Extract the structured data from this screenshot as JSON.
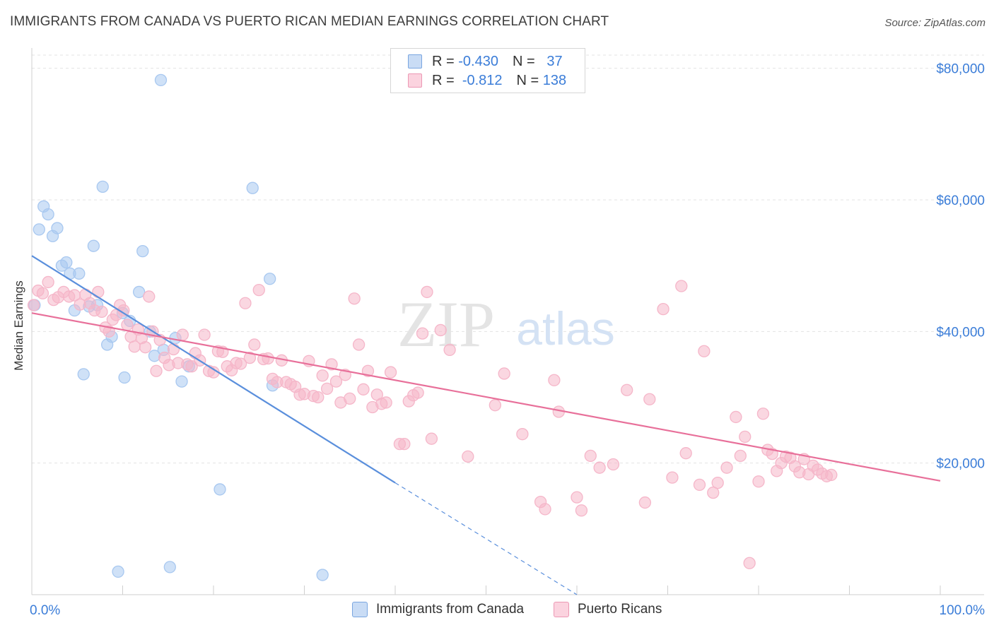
{
  "title": "IMMIGRANTS FROM CANADA VS PUERTO RICAN MEDIAN EARNINGS CORRELATION CHART",
  "source": "Source: ZipAtlas.com",
  "watermark": {
    "zip": "ZIP",
    "atlas": "atlas"
  },
  "legend": {
    "rows": [
      {
        "r_label": "R =",
        "r_value": "-0.430",
        "n_label": "N =",
        "n_value": "37",
        "color": "#a8c8f0"
      },
      {
        "r_label": "R =",
        "r_value": "-0.812",
        "n_label": "N =",
        "n_value": "138",
        "color": "#f5b6c9"
      }
    ]
  },
  "chart_data": {
    "type": "scatter",
    "xlabel": "",
    "ylabel": "Median Earnings",
    "xlim": [
      0,
      100
    ],
    "ylim": [
      0,
      82000
    ],
    "x_tick_labels": [
      "0.0%",
      "100.0%"
    ],
    "y_ticks": [
      20000,
      40000,
      60000,
      80000
    ],
    "y_tick_labels": [
      "$20,000",
      "$40,000",
      "$60,000",
      "$80,000"
    ],
    "grid": true,
    "series": [
      {
        "name": "Immigrants from Canada",
        "color": "#5a8fdc",
        "fill": "#a8c8f0",
        "trend": {
          "x0": 0,
          "y0": 51500,
          "x1": 40,
          "y1": 17000,
          "dash_to_x": 60,
          "dash_to_y": 0
        },
        "points": [
          [
            0.3,
            44000
          ],
          [
            0.8,
            55500
          ],
          [
            1.3,
            59000
          ],
          [
            1.8,
            57800
          ],
          [
            2.3,
            54500
          ],
          [
            2.8,
            55700
          ],
          [
            3.3,
            50000
          ],
          [
            3.8,
            50500
          ],
          [
            4.2,
            48800
          ],
          [
            4.7,
            43200
          ],
          [
            5.2,
            48800
          ],
          [
            5.7,
            33500
          ],
          [
            6.3,
            43800
          ],
          [
            6.8,
            53000
          ],
          [
            7.2,
            44000
          ],
          [
            7.8,
            62000
          ],
          [
            8.3,
            38000
          ],
          [
            8.8,
            39200
          ],
          [
            9.5,
            3500
          ],
          [
            10.0,
            42800
          ],
          [
            10.2,
            33000
          ],
          [
            10.8,
            41600
          ],
          [
            11.8,
            46000
          ],
          [
            12.2,
            52200
          ],
          [
            13.0,
            40000
          ],
          [
            13.5,
            36300
          ],
          [
            14.2,
            78200
          ],
          [
            14.5,
            37200
          ],
          [
            15.2,
            4200
          ],
          [
            15.8,
            39000
          ],
          [
            16.5,
            32400
          ],
          [
            17.3,
            34700
          ],
          [
            20.7,
            16000
          ],
          [
            24.3,
            61800
          ],
          [
            26.2,
            48000
          ],
          [
            26.5,
            31800
          ],
          [
            32.0,
            3000
          ]
        ]
      },
      {
        "name": "Puerto Ricans",
        "color": "#e8709a",
        "fill": "#f5b6c9",
        "trend": {
          "x0": 0,
          "y0": 42800,
          "x1": 100,
          "y1": 17300
        },
        "points": [
          [
            0.2,
            44000
          ],
          [
            0.7,
            46200
          ],
          [
            1.2,
            45800
          ],
          [
            1.8,
            47500
          ],
          [
            2.4,
            44800
          ],
          [
            2.9,
            45200
          ],
          [
            3.5,
            46000
          ],
          [
            4.1,
            45300
          ],
          [
            4.7,
            45500
          ],
          [
            5.3,
            44100
          ],
          [
            5.9,
            45600
          ],
          [
            6.4,
            44300
          ],
          [
            6.9,
            43200
          ],
          [
            7.3,
            46000
          ],
          [
            7.7,
            43000
          ],
          [
            8.1,
            40600
          ],
          [
            8.5,
            40000
          ],
          [
            8.9,
            41800
          ],
          [
            9.3,
            42500
          ],
          [
            9.7,
            44000
          ],
          [
            10.1,
            43200
          ],
          [
            10.5,
            41000
          ],
          [
            10.9,
            39200
          ],
          [
            11.3,
            37700
          ],
          [
            11.7,
            40300
          ],
          [
            12.1,
            39000
          ],
          [
            12.5,
            37600
          ],
          [
            12.9,
            45300
          ],
          [
            13.3,
            40000
          ],
          [
            13.7,
            34000
          ],
          [
            14.1,
            38700
          ],
          [
            14.6,
            36000
          ],
          [
            15.1,
            34900
          ],
          [
            15.6,
            37300
          ],
          [
            16.1,
            35200
          ],
          [
            16.6,
            39500
          ],
          [
            17.1,
            35000
          ],
          [
            17.6,
            34700
          ],
          [
            18.0,
            36700
          ],
          [
            18.5,
            35600
          ],
          [
            19.0,
            39500
          ],
          [
            19.5,
            34000
          ],
          [
            20.0,
            33800
          ],
          [
            20.5,
            37000
          ],
          [
            21.0,
            36900
          ],
          [
            21.5,
            34700
          ],
          [
            22.0,
            34100
          ],
          [
            22.5,
            35200
          ],
          [
            23.0,
            35100
          ],
          [
            23.5,
            44300
          ],
          [
            24.0,
            36000
          ],
          [
            24.5,
            38000
          ],
          [
            25.0,
            46300
          ],
          [
            25.5,
            35800
          ],
          [
            26.0,
            35900
          ],
          [
            26.5,
            32800
          ],
          [
            27.0,
            32300
          ],
          [
            27.5,
            35600
          ],
          [
            28.0,
            32300
          ],
          [
            28.5,
            32000
          ],
          [
            29.0,
            31600
          ],
          [
            29.5,
            30400
          ],
          [
            30.0,
            30500
          ],
          [
            30.5,
            35500
          ],
          [
            31.0,
            30200
          ],
          [
            31.5,
            30000
          ],
          [
            32.0,
            33300
          ],
          [
            32.5,
            31300
          ],
          [
            33.0,
            35000
          ],
          [
            33.5,
            32400
          ],
          [
            34.0,
            29200
          ],
          [
            34.5,
            33400
          ],
          [
            35.0,
            29800
          ],
          [
            35.5,
            45000
          ],
          [
            36.0,
            38000
          ],
          [
            36.5,
            31200
          ],
          [
            37.0,
            34000
          ],
          [
            37.5,
            28500
          ],
          [
            38.0,
            30400
          ],
          [
            38.5,
            29000
          ],
          [
            39.0,
            29200
          ],
          [
            39.5,
            33800
          ],
          [
            40.5,
            22900
          ],
          [
            41.0,
            22900
          ],
          [
            41.5,
            29400
          ],
          [
            42.0,
            30300
          ],
          [
            42.5,
            30700
          ],
          [
            43.0,
            39700
          ],
          [
            43.5,
            46000
          ],
          [
            44.0,
            23700
          ],
          [
            45.0,
            40200
          ],
          [
            46.0,
            37200
          ],
          [
            48.0,
            21000
          ],
          [
            51.0,
            28800
          ],
          [
            52.0,
            33600
          ],
          [
            54.0,
            24400
          ],
          [
            56.0,
            14100
          ],
          [
            56.5,
            13000
          ],
          [
            57.5,
            32600
          ],
          [
            58.0,
            27800
          ],
          [
            60.0,
            14800
          ],
          [
            60.5,
            12800
          ],
          [
            61.5,
            21100
          ],
          [
            62.5,
            19300
          ],
          [
            64.0,
            19800
          ],
          [
            65.5,
            31100
          ],
          [
            67.5,
            14000
          ],
          [
            68.0,
            29700
          ],
          [
            69.5,
            43400
          ],
          [
            70.5,
            17800
          ],
          [
            71.5,
            46900
          ],
          [
            72.0,
            21500
          ],
          [
            73.5,
            16700
          ],
          [
            74.0,
            37000
          ],
          [
            75.0,
            15500
          ],
          [
            75.5,
            17000
          ],
          [
            76.5,
            19300
          ],
          [
            77.5,
            27000
          ],
          [
            78.0,
            21100
          ],
          [
            78.5,
            24000
          ],
          [
            79.0,
            4800
          ],
          [
            80.0,
            17200
          ],
          [
            80.5,
            27500
          ],
          [
            81.0,
            22000
          ],
          [
            81.5,
            21400
          ],
          [
            82.0,
            18800
          ],
          [
            82.5,
            20000
          ],
          [
            83.0,
            21000
          ],
          [
            83.5,
            20800
          ],
          [
            84.0,
            19500
          ],
          [
            84.5,
            18600
          ],
          [
            85.0,
            20600
          ],
          [
            85.5,
            18300
          ],
          [
            86.0,
            19600
          ],
          [
            86.5,
            19000
          ],
          [
            87.0,
            18400
          ],
          [
            87.5,
            18000
          ],
          [
            88.0,
            18200
          ]
        ]
      }
    ]
  }
}
